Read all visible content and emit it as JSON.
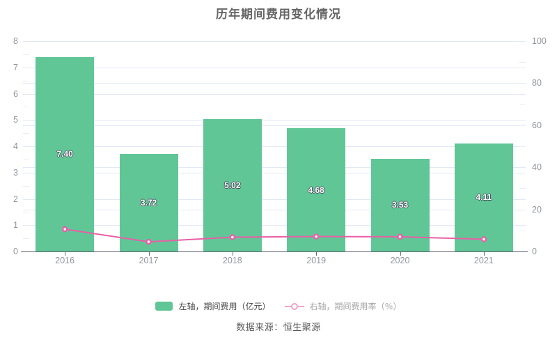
{
  "chart_data": {
    "type": "bar",
    "title": "历年期间费用变化情况",
    "categories": [
      "2016",
      "2017",
      "2018",
      "2019",
      "2020",
      "2021"
    ],
    "series": [
      {
        "name": "左轴，期间费用（亿元）",
        "type": "bar",
        "yaxis": "left",
        "values": [
          7.4,
          3.72,
          5.02,
          4.68,
          3.53,
          4.11
        ],
        "value_labels": [
          "7.40",
          "3.72",
          "5.02",
          "4.68",
          "3.53",
          "4.11"
        ]
      },
      {
        "name": "右轴，期间费用率（％）",
        "type": "line",
        "yaxis": "right",
        "values": [
          10.6,
          4.6,
          6.8,
          7.1,
          7.0,
          5.8
        ],
        "marker": "hollow-circle"
      }
    ],
    "left_axis": {
      "min": 0,
      "max": 8,
      "ticks": [
        0,
        1,
        2,
        3,
        4,
        5,
        6,
        7,
        8
      ]
    },
    "right_axis": {
      "min": 0,
      "max": 100,
      "ticks": [
        0,
        20,
        40,
        60,
        80,
        100
      ]
    },
    "grid": true,
    "legend_position": "bottom"
  },
  "legend": [
    {
      "label": "左轴，期间费用（亿元）"
    },
    {
      "label": "右轴，期间费用率（％）"
    }
  ],
  "source": "数据来源：恒生聚源",
  "colors": {
    "bar": "#60c696",
    "line": "#e85fa7",
    "legend_line": "#eda4cc",
    "grid_major": "#e2e8f4",
    "grid_minor": "#e9eef6",
    "axis_line": "#5b626b",
    "title": "#666666",
    "axis_label": "#8f969f"
  }
}
